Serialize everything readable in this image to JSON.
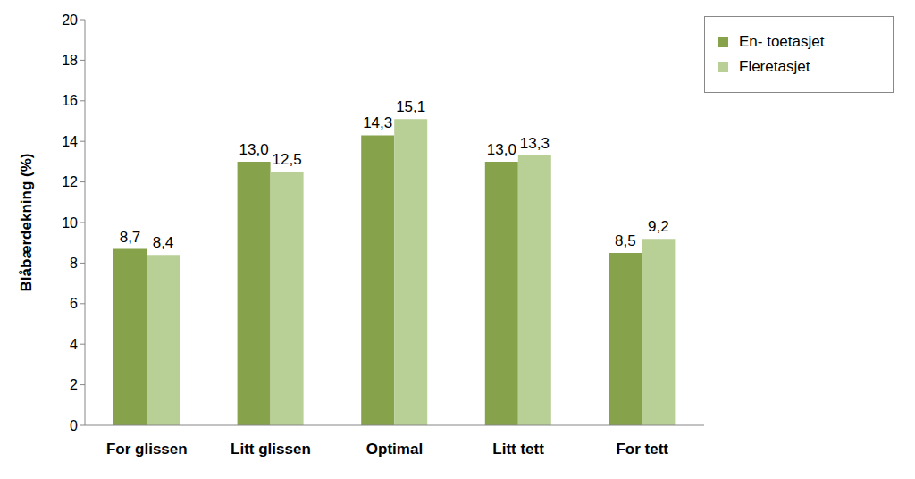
{
  "chart_data": {
    "type": "bar",
    "y_label": "Blåbærdekning (%)",
    "categories": [
      "For glissen",
      "Litt glissen",
      "Optimal",
      "Litt tett",
      "For tett"
    ],
    "series": [
      {
        "name": "En- toetasjet",
        "color": "#86a34b",
        "values": [
          8.7,
          13.0,
          14.3,
          13.0,
          8.5
        ],
        "value_labels": [
          "8,7",
          "13,0",
          "14,3",
          "13,0",
          "8,5"
        ]
      },
      {
        "name": "Fleretasjet",
        "color": "#b8cf96",
        "values": [
          8.4,
          12.5,
          15.1,
          13.3,
          9.2
        ],
        "value_labels": [
          "8,4",
          "12,5",
          "15,1",
          "13,3",
          "9,2"
        ]
      }
    ],
    "ylim": [
      0,
      20
    ],
    "yticks": [
      0,
      2,
      4,
      6,
      8,
      10,
      12,
      14,
      16,
      18,
      20
    ],
    "grid": false,
    "legend": "top-right",
    "data_labels": true
  }
}
